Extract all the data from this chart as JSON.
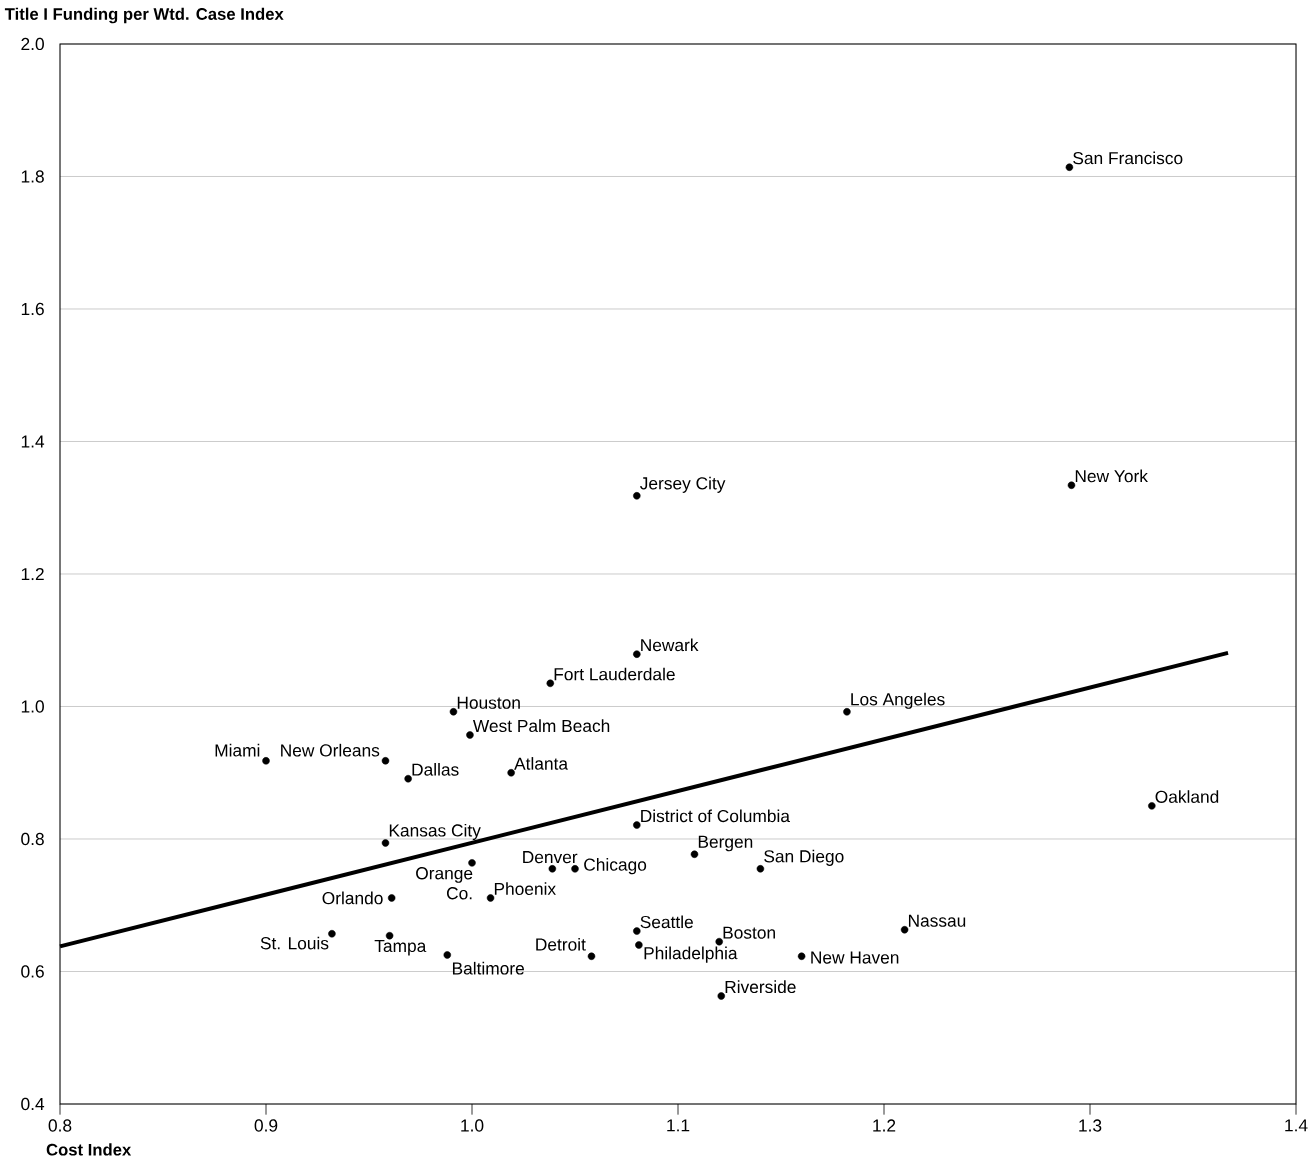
{
  "chart_data": {
    "type": "scatter",
    "xlabel": "Cost Index",
    "ylabel": "Title I Funding per Wtd. Case Index",
    "xlim": [
      0.8,
      1.4
    ],
    "ylim": [
      0.4,
      2.0
    ],
    "xticks": [
      {
        "value": 0.8,
        "label": "0.8"
      },
      0.9,
      {
        "value": 1.0,
        "label": "1.0"
      },
      1.1,
      1.2,
      1.3,
      1.4
    ],
    "yticks": [
      0.4,
      0.6,
      0.8,
      {
        "value": 1.0,
        "label": "1.0"
      },
      1.2,
      1.4,
      1.6,
      1.8,
      {
        "value": 2.0,
        "label": "2.0"
      }
    ],
    "grid": "y",
    "series": [
      {
        "marker": "circle",
        "color": "#000000",
        "x": [
          1.29,
          1.291,
          1.08,
          1.08,
          1.038,
          0.991,
          1.182,
          0.999,
          0.9,
          0.958,
          0.969,
          1.019,
          1.33,
          1.08,
          0.958,
          1.108,
          1.0,
          1.039,
          1.05,
          1.14,
          1.009,
          0.961,
          1.08,
          1.21,
          0.932,
          0.96,
          1.12,
          1.081,
          0.988,
          1.058,
          1.16,
          1.121
        ],
        "values": [
          1.814,
          1.334,
          1.318,
          1.079,
          1.035,
          0.992,
          0.992,
          0.957,
          0.918,
          0.918,
          0.891,
          0.9,
          0.85,
          0.821,
          0.794,
          0.777,
          0.764,
          0.755,
          0.755,
          0.755,
          0.711,
          0.711,
          0.661,
          0.663,
          0.657,
          0.654,
          0.645,
          0.64,
          0.625,
          0.623,
          0.623,
          0.563
        ]
      },
      {
        "type": "line",
        "marker": "none",
        "color": "#000000",
        "x": [
          0.8,
          1.367
        ],
        "values": [
          0.638,
          1.081
        ]
      }
    ],
    "annotations": [
      {
        "text": "San Francisco",
        "x": 1.29,
        "y": 1.814
      },
      {
        "text": "New York",
        "x": 1.291,
        "y": 1.334
      },
      {
        "text": "Jersey City",
        "x": 1.08,
        "y": 1.318
      },
      {
        "text": "Newark",
        "x": 1.08,
        "y": 1.079
      },
      {
        "text": "Fort Lauderdale",
        "x": 1.038,
        "y": 1.035
      },
      {
        "text": "Houston",
        "x": 0.991,
        "y": 0.992
      },
      {
        "text": "Los Angeles",
        "x": 1.182,
        "y": 0.992
      },
      {
        "text": "West Palm Beach",
        "x": 0.999,
        "y": 0.957
      },
      {
        "text": "Miami",
        "x": 0.9,
        "y": 0.918
      },
      {
        "text": "New Orleans",
        "x": 0.958,
        "y": 0.918
      },
      {
        "text": "Dallas",
        "x": 0.969,
        "y": 0.891
      },
      {
        "text": "Atlanta",
        "x": 1.019,
        "y": 0.9
      },
      {
        "text": "Oakland",
        "x": 1.33,
        "y": 0.85
      },
      {
        "text": "District of Columbia",
        "x": 1.08,
        "y": 0.821
      },
      {
        "text": "Kansas City",
        "x": 0.958,
        "y": 0.794
      },
      {
        "text": "Bergen",
        "x": 1.108,
        "y": 0.777
      },
      {
        "text": "Orange Co.",
        "x": 1.0,
        "y": 0.764
      },
      {
        "text": "Denver",
        "x": 1.039,
        "y": 0.755
      },
      {
        "text": "Chicago",
        "x": 1.05,
        "y": 0.755
      },
      {
        "text": "San Diego",
        "x": 1.14,
        "y": 0.755
      },
      {
        "text": "Phoenix",
        "x": 1.009,
        "y": 0.711
      },
      {
        "text": "Orlando",
        "x": 0.961,
        "y": 0.711
      },
      {
        "text": "Seattle",
        "x": 1.08,
        "y": 0.661
      },
      {
        "text": "Nassau",
        "x": 1.21,
        "y": 0.663
      },
      {
        "text": "St. Louis",
        "x": 0.932,
        "y": 0.657
      },
      {
        "text": "Tampa",
        "x": 0.96,
        "y": 0.654
      },
      {
        "text": "Boston",
        "x": 1.12,
        "y": 0.645
      },
      {
        "text": "Philadelphia",
        "x": 1.081,
        "y": 0.64
      },
      {
        "text": "Baltimore",
        "x": 0.988,
        "y": 0.625
      },
      {
        "text": "Detroit",
        "x": 1.058,
        "y": 0.623
      },
      {
        "text": "New Haven",
        "x": 1.16,
        "y": 0.623
      },
      {
        "text": "Riverside",
        "x": 1.121,
        "y": 0.563
      }
    ]
  }
}
